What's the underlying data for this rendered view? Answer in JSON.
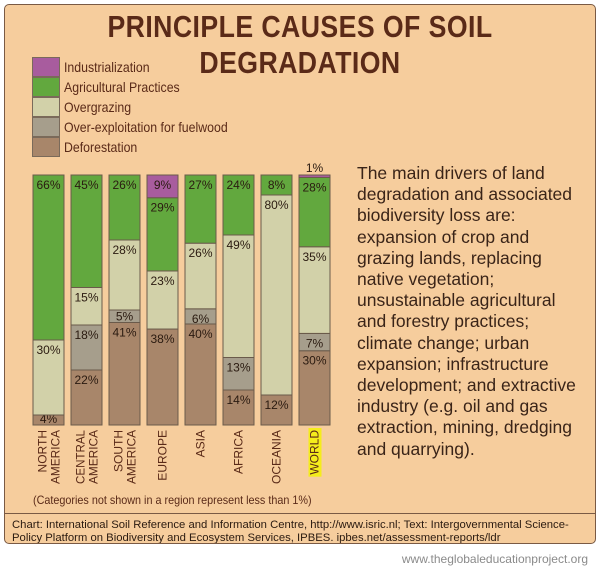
{
  "title": "PRINCIPLE CAUSES OF SOIL DEGRADATION",
  "legend": [
    {
      "label": "Industrialization",
      "color": "#a85c9e"
    },
    {
      "label": "Agricultural Practices",
      "color": "#62a83e"
    },
    {
      "label": "Overgrazing",
      "color": "#d2d1a9"
    },
    {
      "label": "Over-exploitation for fuelwood",
      "color": "#a69e8c"
    },
    {
      "label": "Deforestation",
      "color": "#a8866a"
    }
  ],
  "chart_data": {
    "type": "bar",
    "stacked": true,
    "categories": [
      "NORTH AMERICA",
      "CENTRAL AMERICA",
      "SOUTH AMERICA",
      "EUROPE",
      "ASIA",
      "AFRICA",
      "OCEANIA",
      "WORLD"
    ],
    "highlight_category": "WORLD",
    "highlight_color": "#f4ec1c",
    "series": [
      {
        "name": "Deforestation",
        "color": "#a8866a",
        "values": [
          4,
          22,
          41,
          38,
          40,
          14,
          12,
          30
        ]
      },
      {
        "name": "Over-exploitation for fuelwood",
        "color": "#a69e8c",
        "values": [
          0,
          18,
          5,
          0,
          6,
          13,
          0,
          7
        ]
      },
      {
        "name": "Overgrazing",
        "color": "#d2d1a9",
        "values": [
          30,
          15,
          28,
          23,
          26,
          49,
          80,
          35
        ]
      },
      {
        "name": "Agricultural Practices",
        "color": "#62a83e",
        "values": [
          66,
          45,
          26,
          29,
          27,
          24,
          8,
          28
        ]
      },
      {
        "name": "Industrialization",
        "color": "#a85c9e",
        "values": [
          0,
          0,
          0,
          9,
          0,
          0,
          0,
          1
        ]
      }
    ],
    "value_suffix": "%",
    "ylim": [
      0,
      100
    ]
  },
  "description": "The main drivers of land degradation and associated biodiversity loss are: expansion of crop and grazing lands, replacing native vegetation; unsustainable agricultural and forestry practices; climate change; urban expansion; infrastructure development; and extractive industry (e.g. oil and gas extraction, mining, dredging and quarrying).",
  "note": "(Categories not shown in a region represent less than 1%)",
  "footer": "Chart: International  Soil Reference and Information Centre, http://www.isric.nl; Text: Intergovernmental Science-Policy Platform on Biodiversity and Ecosystem Services, IPBES. ipbes.net/assessment-reports/ldr",
  "site": "www.theglobaleducationproject.org"
}
